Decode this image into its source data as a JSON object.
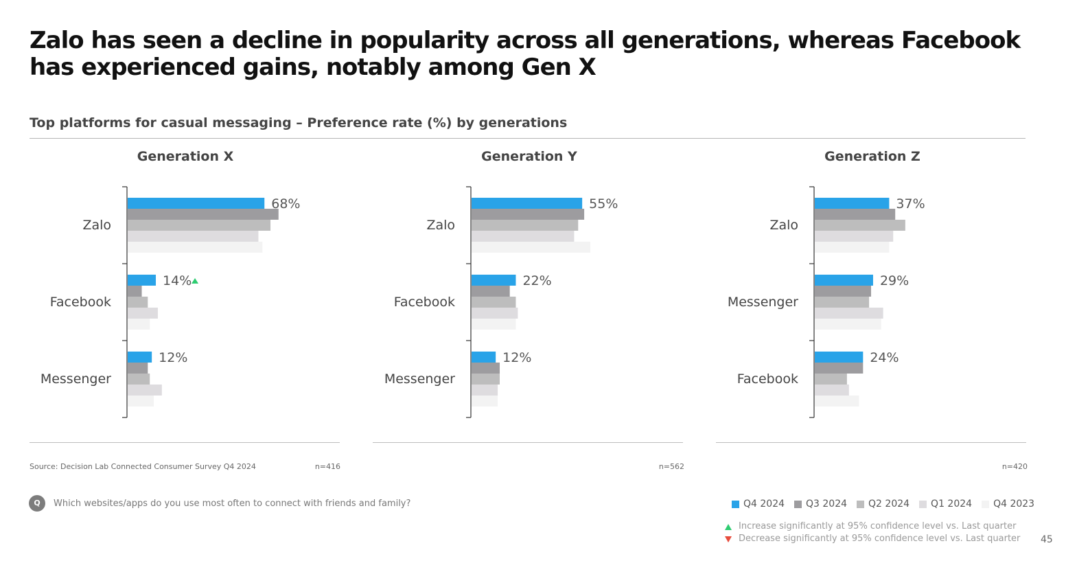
{
  "title": "Zalo has seen a decline in popularity across all generations, whereas Facebook has experienced gains, notably among Gen X",
  "subtitle": "Top platforms for casual messaging – Preference rate (%) by generations",
  "series_names": [
    "Q4 2024",
    "Q3 2024",
    "Q2 2024",
    "Q1 2024",
    "Q4 2023"
  ],
  "series_colors": [
    "#29a3e8",
    "#9d9c9f",
    "#bdbdbd",
    "#dedcdf",
    "#f3f3f3"
  ],
  "chart_data": [
    {
      "type": "bar",
      "title": "Generation X",
      "orientation": "horizontal",
      "categories": [
        "Zalo",
        "Facebook",
        "Messenger"
      ],
      "series": [
        {
          "name": "Q4 2024",
          "values": [
            68,
            14,
            12
          ]
        },
        {
          "name": "Q3 2024",
          "values": [
            75,
            7,
            10
          ]
        },
        {
          "name": "Q2 2024",
          "values": [
            71,
            10,
            11
          ]
        },
        {
          "name": "Q1 2024",
          "values": [
            65,
            15,
            17
          ]
        },
        {
          "name": "Q4 2023",
          "values": [
            67,
            11,
            13
          ]
        }
      ],
      "value_labels": [
        "68%",
        "14%",
        "12%"
      ],
      "significance": [
        "",
        "up",
        ""
      ],
      "n": "n=416",
      "xlim": [
        0,
        100
      ]
    },
    {
      "type": "bar",
      "title": "Generation Y",
      "orientation": "horizontal",
      "categories": [
        "Zalo",
        "Facebook",
        "Messenger"
      ],
      "series": [
        {
          "name": "Q4 2024",
          "values": [
            55,
            22,
            12
          ]
        },
        {
          "name": "Q3 2024",
          "values": [
            56,
            19,
            14
          ]
        },
        {
          "name": "Q2 2024",
          "values": [
            53,
            22,
            14
          ]
        },
        {
          "name": "Q1 2024",
          "values": [
            51,
            23,
            13
          ]
        },
        {
          "name": "Q4 2023",
          "values": [
            59,
            22,
            13
          ]
        }
      ],
      "value_labels": [
        "55%",
        "22%",
        "12%"
      ],
      "significance": [
        "",
        "",
        ""
      ],
      "n": "n=562",
      "xlim": [
        0,
        100
      ]
    },
    {
      "type": "bar",
      "title": "Generation Z",
      "orientation": "horizontal",
      "categories": [
        "Zalo",
        "Messenger",
        "Facebook"
      ],
      "series": [
        {
          "name": "Q4 2024",
          "values": [
            37,
            29,
            24
          ]
        },
        {
          "name": "Q3 2024",
          "values": [
            40,
            28,
            24
          ]
        },
        {
          "name": "Q2 2024",
          "values": [
            45,
            27,
            16
          ]
        },
        {
          "name": "Q1 2024",
          "values": [
            39,
            34,
            17
          ]
        },
        {
          "name": "Q4 2023",
          "values": [
            37,
            33,
            22
          ]
        }
      ],
      "value_labels": [
        "37%",
        "29%",
        "24%"
      ],
      "significance": [
        "",
        "",
        ""
      ],
      "n": "n=420",
      "xlim": [
        0,
        100
      ]
    }
  ],
  "source": "Source: Decision Lab Connected Consumer Survey Q4 2024",
  "question": {
    "icon": "Q",
    "text": "Which websites/apps do you use most often to connect with friends and family?"
  },
  "notes": {
    "increase": "Increase significantly at 95% confidence level vs. Last quarter",
    "decrease": "Decrease significantly at 95% confidence level vs. Last quarter",
    "increase_color": "#2ecc71",
    "decrease_color": "#e74c3c"
  },
  "page_number": "45"
}
